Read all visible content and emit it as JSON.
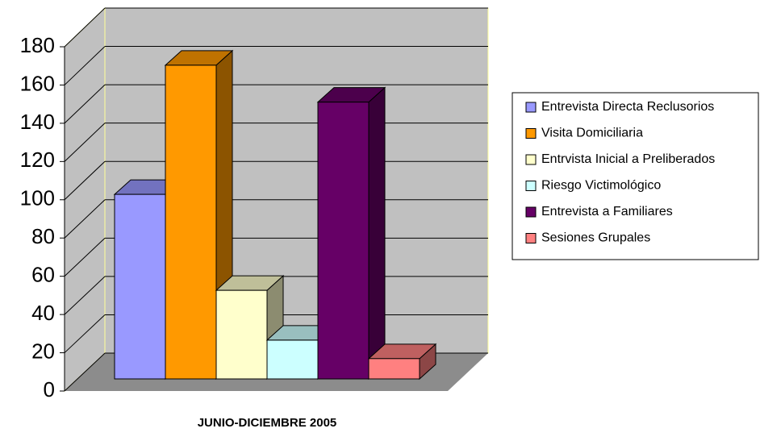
{
  "chart_data": {
    "type": "bar3d",
    "categories": [
      "JUNIO-DICIEMBRE 2005"
    ],
    "series": [
      {
        "name": "Entrevista Directa Reclusorios",
        "color": "#9999ff",
        "values": [
          100
        ]
      },
      {
        "name": "Visita Domiciliaria",
        "color": "#ff9900",
        "values": [
          170
        ]
      },
      {
        "name": "Entrvista Inicial a Preliberados",
        "color": "#ffffcc",
        "values": [
          48
        ]
      },
      {
        "name": "Riesgo Victimológico",
        "color": "#ccffff",
        "values": [
          21
        ]
      },
      {
        "name": "Entrevista a Familiares",
        "color": "#660066",
        "values": [
          150
        ]
      },
      {
        "name": "Sesiones Grupales",
        "color": "#ff8080",
        "values": [
          11
        ]
      }
    ],
    "ylim": [
      0,
      180
    ],
    "yticks": [
      0,
      20,
      40,
      60,
      80,
      100,
      120,
      140,
      160,
      180
    ],
    "grid": true,
    "legend": "right"
  }
}
